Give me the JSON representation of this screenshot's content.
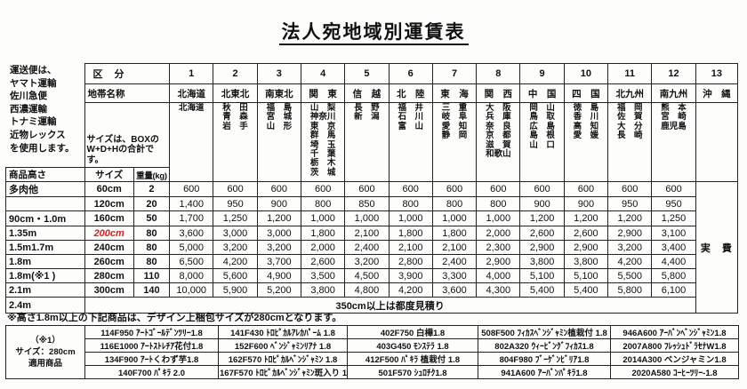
{
  "title": "法人宛地域別運賃表",
  "carrier_note": {
    "lines": [
      "運送便は、",
      "ヤマト運輸",
      "佐川急便",
      "西濃運輸",
      "トナミ運輸",
      "近物レックス",
      "を使用します。"
    ]
  },
  "size_note": {
    "lines": [
      "サイズは、BOXの",
      "W+D+Hの合計です。"
    ]
  },
  "rate_table": {
    "kubun_label": "区　分",
    "zone_label": "地帯名称",
    "height_label": "商品高さ",
    "size_label": "サイズ",
    "weight_label": "重量(kg)",
    "okinawa_fare": "実　費",
    "red_color": "#cc2222",
    "regions": [
      {
        "no": "1",
        "name": "北海道",
        "prefs": [
          "北海道"
        ]
      },
      {
        "no": "2",
        "name": "北東北",
        "prefs": [
          "秋　田",
          "青　森",
          "岩　手"
        ]
      },
      {
        "no": "3",
        "name": "南東北",
        "prefs": [
          "福　島",
          "宮　城",
          "山　形"
        ]
      },
      {
        "no": "4",
        "name": "関　東",
        "prefs": [
          "山　梨",
          "神奈川",
          "東　京",
          "群　馬",
          "埼　玉",
          "千　葉",
          "栃　木",
          "茨　城"
        ]
      },
      {
        "no": "5",
        "name": "信　越",
        "prefs": [
          "長　野",
          "新　潟"
        ]
      },
      {
        "no": "6",
        "name": "北　陸",
        "prefs": [
          "福　井",
          "石　川",
          "富　山"
        ]
      },
      {
        "no": "7",
        "name": "東　海",
        "prefs": [
          "三　重",
          "岐　阜",
          "愛　知",
          "静　岡"
        ]
      },
      {
        "no": "8",
        "name": "関　西",
        "prefs": [
          "大　阪",
          "兵　庫",
          "奈　良",
          "京　都",
          "滋　賀",
          "和歌山"
        ]
      },
      {
        "no": "9",
        "name": "中　国",
        "prefs": [
          "岡　山",
          "鳥　取",
          "広　島",
          "島　根",
          "山　口"
        ]
      },
      {
        "no": "10",
        "name": "四　国",
        "prefs": [
          "徳　島",
          "香　川",
          "高　知",
          "愛　媛"
        ]
      },
      {
        "no": "11",
        "name": "北九州",
        "prefs": [
          "福　岡",
          "佐　賀",
          "大　分",
          "長　崎"
        ]
      },
      {
        "no": "12",
        "name": "南九州",
        "prefs": [
          "熊　本",
          "宮　崎",
          "鹿児島"
        ]
      },
      {
        "no": "13",
        "name": "沖　縄",
        "prefs": []
      }
    ],
    "rows": [
      {
        "height": "多肉他",
        "size": "60cm",
        "weight": "2",
        "size_red": false,
        "fares": [
          "600",
          "600",
          "600",
          "600",
          "600",
          "600",
          "600",
          "600",
          "600",
          "600",
          "600",
          "600"
        ]
      },
      {
        "height": "",
        "size": "120cm",
        "weight": "20",
        "size_red": false,
        "fares": [
          "1,400",
          "950",
          "900",
          "800",
          "850",
          "800",
          "800",
          "800",
          "900",
          "900",
          "950",
          "950"
        ]
      },
      {
        "height": "90cm・1.0m",
        "size": "160cm",
        "weight": "50",
        "size_red": false,
        "fares": [
          "1,700",
          "1,250",
          "1,200",
          "1,000",
          "1,000",
          "1,000",
          "1,000",
          "1,000",
          "1,200",
          "1,200",
          "1,200",
          "1,250"
        ]
      },
      {
        "height": "1.35m",
        "size": "200cm",
        "weight": "80",
        "size_red": true,
        "fares": [
          "3,600",
          "3,000",
          "3,000",
          "1,800",
          "2,100",
          "1,800",
          "1,800",
          "2,000",
          "2,600",
          "2,600",
          "2,900",
          "3,100"
        ]
      },
      {
        "height": "1.5m1.7m",
        "size": "240cm",
        "weight": "80",
        "size_red": false,
        "fares": [
          "5,000",
          "3,200",
          "3,200",
          "2,000",
          "2,400",
          "2,100",
          "2,100",
          "2,300",
          "2,900",
          "2,900",
          "3,200",
          "3,400"
        ]
      },
      {
        "height": "1.8m",
        "size": "260cm",
        "weight": "80",
        "size_red": false,
        "fares": [
          "6,500",
          "4,200",
          "3,700",
          "2,600",
          "3,200",
          "2,800",
          "2,400",
          "2,900",
          "3,800",
          "3,800",
          "4,200",
          "4,400"
        ]
      },
      {
        "height": "1.8m(※1 )",
        "size": "280cm",
        "weight": "110",
        "size_red": false,
        "fares": [
          "8,000",
          "5,600",
          "4,900",
          "3,500",
          "4,500",
          "3,900",
          "3,300",
          "4,000",
          "5,100",
          "5,100",
          "5,500",
          "5,800"
        ]
      },
      {
        "height": "2.1m",
        "size": "300cm",
        "weight": "140",
        "size_red": false,
        "fares": [
          "10,000",
          "5,900",
          "5,200",
          "3,800",
          "4,800",
          "4,200",
          "3,600",
          "4,300",
          "5,400",
          "5,400",
          "5,800",
          "6,100"
        ]
      }
    ],
    "last_row": {
      "height": "2.4m",
      "note": "350cm以上は都度見積り"
    }
  },
  "footnote": "※高さ1.8m以上の下記商品は、デザイン上梱包サイズが280cmとなります。",
  "product_table": {
    "label_lines": [
      "（※1）",
      "サイズ：280cm",
      "適用商品"
    ],
    "columns": [
      [
        "114F950 ｱｰﾄｺﾞｰﾙﾃﾞﾝﾂﾘｰ1.8",
        "116E1000 ｱｰﾄｽﾄﾚﾁｱ花付1.8",
        "134F900 ｱｰﾄくわず芋1.8",
        "140F700 ﾊﾟｷﾗ 2.0"
      ],
      [
        "141F430 ﾄﾛﾋﾟｶﾙｱﾚｶﾊﾟｰﾑ 1.8",
        "152F600 ﾍﾞﾝｼﾞｬﾐﾝﾘｱﾅ 1.8",
        "162F570 ﾄﾛﾋﾟｶﾙﾍﾞﾝｼﾞｬﾐﾝ 1.8",
        "167F570 ﾄﾛﾋﾟｶﾙﾍﾞﾝｼﾞｬﾐﾝ斑入り 1.8"
      ],
      [
        "402F750 白樺1.8",
        "403G450 ﾓﾝｽﾃﾗ 1.8",
        "412F500 ﾊﾟｷﾗ 植栽付 1.8",
        "501F570 ｼｭﾛﾁｸ1.8"
      ],
      [
        "508F500 ﾌｨｶｽﾍﾞﾝｼﾞｬﾐﾝ植栽付 1.8",
        "802A320 ｳｨｰﾋﾞﾝｸﾞﾌｨｶｽ1.8",
        "804F980 ﾌﾞｰｹﾞﾝﾋﾞﾘｱ1.8",
        "941A600 ｱｰﾊﾞﾝﾊﾟｷﾗ1.8"
      ],
      [
        "946A600 ｱｰﾊﾞﾝﾍﾞﾝｼﾞｬﾐﾝ1.8",
        "2007A800 ﾌﾚｯｼｭﾄﾞﾗｾﾅW1.8",
        "2014A300 ベンジャミン1.8",
        "2020A580 ｺｰﾋｰﾂﾘｰ-1.8"
      ]
    ]
  }
}
